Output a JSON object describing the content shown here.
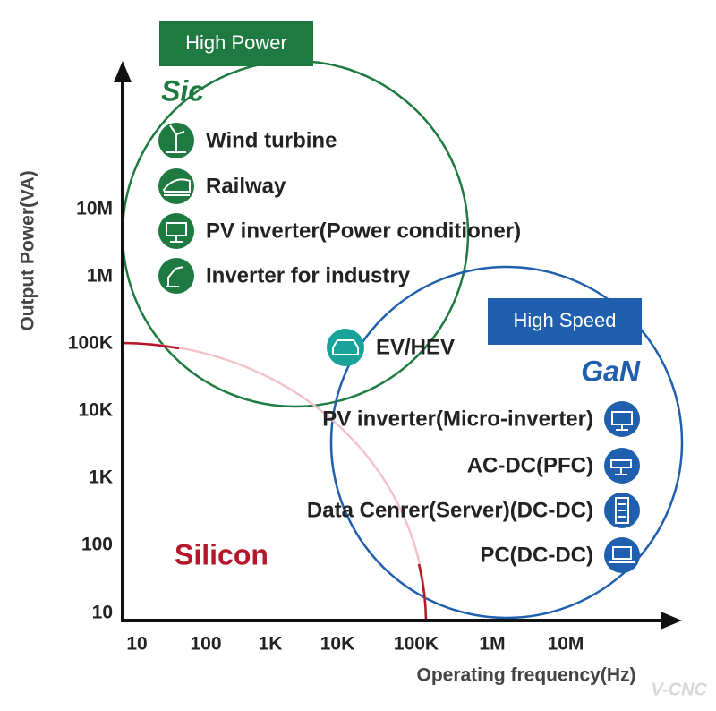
{
  "y_axis": {
    "title": "Output Power(VA)",
    "ticks": [
      "10M",
      "1M",
      "100K",
      "10K",
      "1K",
      "100",
      "10"
    ]
  },
  "x_axis": {
    "title": "Operating frequency(Hz)",
    "ticks": [
      "10",
      "100",
      "1K",
      "10K",
      "100K",
      "1M",
      "10M"
    ]
  },
  "sic": {
    "badge": "High Power",
    "name": "Sic",
    "items": [
      "Wind turbine",
      "Railway",
      "PV inverter(Power conditioner)",
      "Inverter for industry"
    ]
  },
  "shared": {
    "item": "EV/HEV"
  },
  "gan": {
    "badge": "High Speed",
    "name": "GaN",
    "items": [
      "PV inverter(Micro-inverter)",
      "AC-DC(PFC)",
      "Data Cenrer(Server)(DC-DC)",
      "PC(DC-DC)"
    ]
  },
  "silicon": {
    "name": "Silicon"
  },
  "watermark": "V-CNC"
}
